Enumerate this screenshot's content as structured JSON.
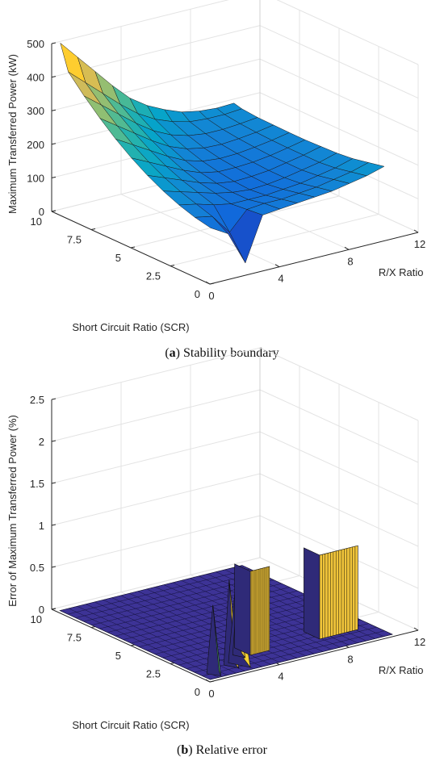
{
  "chart_data": [
    {
      "type": "surface",
      "caption_letter": "a",
      "caption_text": "Stability boundary",
      "xlabel": "R/X Ratio",
      "ylabel": "Short Circuit Ratio (SCR)",
      "zlabel": "Maximum Transferred Power (kW)",
      "x_ticks": [
        "0",
        "4",
        "8",
        "12"
      ],
      "y_ticks": [
        "0",
        "2.5",
        "5",
        "7.5",
        "10"
      ],
      "z_ticks": [
        "0",
        "100",
        "200",
        "300",
        "400",
        "500"
      ],
      "x_range": [
        0,
        12
      ],
      "y_range": [
        0,
        10
      ],
      "z_range": [
        0,
        500
      ],
      "x": [
        0.5,
        1.5,
        2.5,
        3.5,
        4.5,
        5.5,
        6.5,
        7.5,
        8.5,
        9.5,
        10.5
      ],
      "y": [
        0.5,
        1.5,
        2.5,
        3.5,
        4.5,
        5.5,
        6.5,
        7.5,
        8.5,
        9.5,
        10.0
      ],
      "z_rows_by_y": [
        [
          150,
          120,
          20,
          150,
          155,
          160,
          165,
          170,
          180,
          190,
          205
        ],
        [
          160,
          150,
          90,
          145,
          150,
          150,
          155,
          160,
          170,
          180,
          195
        ],
        [
          175,
          165,
          150,
          140,
          140,
          140,
          145,
          150,
          160,
          170,
          185
        ],
        [
          195,
          180,
          165,
          150,
          140,
          135,
          138,
          145,
          155,
          165,
          180
        ],
        [
          220,
          200,
          180,
          160,
          145,
          138,
          140,
          145,
          155,
          165,
          178
        ],
        [
          250,
          225,
          200,
          175,
          155,
          145,
          145,
          148,
          155,
          165,
          176
        ],
        [
          285,
          255,
          225,
          195,
          170,
          155,
          150,
          152,
          158,
          166,
          176
        ],
        [
          325,
          290,
          255,
          220,
          190,
          170,
          160,
          158,
          162,
          168,
          177
        ],
        [
          370,
          330,
          290,
          250,
          215,
          190,
          175,
          168,
          168,
          172,
          178
        ],
        [
          420,
          375,
          330,
          285,
          245,
          215,
          195,
          182,
          178,
          178,
          182
        ],
        [
          495,
          440,
          385,
          330,
          280,
          245,
          220,
          200,
          190,
          186,
          188
        ]
      ],
      "grid": true,
      "colormap": "parula",
      "colors": [
        "#352a87",
        "#0f5cdd",
        "#1481d6",
        "#06a4ca",
        "#2eb7a4",
        "#87bf77",
        "#d1bb59",
        "#fec832",
        "#f9fb0e"
      ]
    },
    {
      "type": "surface",
      "caption_letter": "b",
      "caption_text": "Relative error",
      "xlabel": "R/X Ratio",
      "ylabel": "Short Circuit Ratio (SCR)",
      "zlabel": "Error of Maximum Transferred Power (%)",
      "x_ticks": [
        "0",
        "4",
        "8",
        "12"
      ],
      "y_ticks": [
        "0",
        "2.5",
        "5",
        "7.5",
        "10"
      ],
      "z_ticks": [
        "0",
        "0.5",
        "1",
        "1.5",
        "2",
        "2.5"
      ],
      "x_range": [
        0,
        12
      ],
      "y_range": [
        0,
        10
      ],
      "z_range": [
        0,
        2.5
      ],
      "background_z": 0,
      "background_color": "#3d3396",
      "peaks": [
        {
          "x": 0.9,
          "y": 0.8,
          "dx": 0.35,
          "dy": 0.5,
          "z": 0.8,
          "shape": "spike",
          "color": "#4ea36a"
        },
        {
          "x": 2.2,
          "y": 1.2,
          "dx": 0.3,
          "dy": 0.6,
          "z": 1.0,
          "shape": "spike",
          "color": "#e8c53a"
        },
        {
          "x": 2.7,
          "y": 1.3,
          "dx": 0.45,
          "dy": 0.9,
          "z": 1.0,
          "shape": "spike",
          "color": "#f2d035"
        },
        {
          "x": 3.3,
          "y": 1.9,
          "dx": 0.25,
          "dy": 0.5,
          "z": 0.75,
          "shape": "spike",
          "color": "#e2bf39"
        },
        {
          "x0": 3.7,
          "x1": 4.8,
          "y0": 1.5,
          "y1": 2.5,
          "z": 1.0,
          "shape": "ridge",
          "color": "#f0c43a"
        },
        {
          "x0": 7.6,
          "x1": 9.8,
          "y0": 1.4,
          "y1": 2.4,
          "z": 1.0,
          "shape": "ridge",
          "color": "#f0c43a"
        }
      ],
      "grid": true
    }
  ]
}
